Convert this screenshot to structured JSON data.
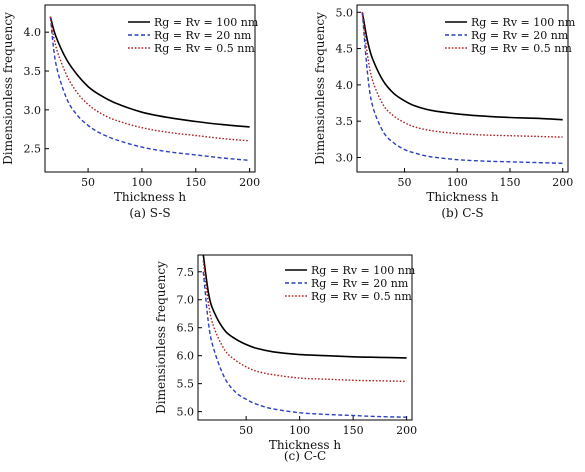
{
  "chart_data": [
    {
      "type": "line",
      "caption": "(a) S-S",
      "xlabel": "Thickness h",
      "ylabel": "Dimensionless frequency",
      "xlim": [
        10,
        205
      ],
      "ylim": [
        2.2,
        4.35
      ],
      "xticks": [
        50,
        100,
        150,
        200
      ],
      "yticks": [
        2.5,
        3.0,
        3.5,
        4.0
      ],
      "grid": false,
      "legend_position": "top-right",
      "series": [
        {
          "name": "Rg = Rv = 100 nm",
          "color": "#000000",
          "style": "solid",
          "x": [
            15,
            20,
            30,
            40,
            50,
            60,
            75,
            100,
            125,
            150,
            175,
            200
          ],
          "y": [
            4.2,
            3.95,
            3.65,
            3.45,
            3.3,
            3.2,
            3.09,
            2.97,
            2.9,
            2.85,
            2.81,
            2.78
          ]
        },
        {
          "name": "Rg = Rv = 20 nm",
          "color": "#2a3fbf",
          "style": "dashed",
          "x": [
            15,
            20,
            30,
            40,
            50,
            60,
            75,
            100,
            125,
            150,
            175,
            200
          ],
          "y": [
            4.2,
            3.6,
            3.15,
            2.93,
            2.8,
            2.71,
            2.62,
            2.52,
            2.46,
            2.42,
            2.38,
            2.35
          ]
        },
        {
          "name": "Rg = Rv = 0.5 nm",
          "color": "#b02020",
          "style": "dotted",
          "x": [
            15,
            20,
            30,
            40,
            50,
            60,
            75,
            100,
            125,
            150,
            175,
            200
          ],
          "y": [
            4.2,
            3.82,
            3.45,
            3.22,
            3.07,
            2.97,
            2.87,
            2.77,
            2.71,
            2.67,
            2.63,
            2.6
          ]
        }
      ]
    },
    {
      "type": "line",
      "caption": "(b) C-S",
      "xlabel": "Thickness h",
      "ylabel": "Dimensionless frequency",
      "xlim": [
        5,
        205
      ],
      "ylim": [
        2.8,
        5.1
      ],
      "xticks": [
        50,
        100,
        150,
        200
      ],
      "yticks": [
        3.0,
        3.5,
        4.0,
        4.5,
        5.0
      ],
      "grid": false,
      "legend_position": "top-right",
      "series": [
        {
          "name": "Rg = Rv = 100 nm",
          "color": "#000000",
          "style": "solid",
          "x": [
            10,
            15,
            20,
            30,
            40,
            50,
            60,
            75,
            100,
            125,
            150,
            175,
            200
          ],
          "y": [
            5.0,
            4.6,
            4.35,
            4.05,
            3.88,
            3.78,
            3.71,
            3.65,
            3.6,
            3.57,
            3.55,
            3.54,
            3.52
          ]
        },
        {
          "name": "Rg = Rv = 20 nm",
          "color": "#2a3fbf",
          "style": "dashed",
          "x": [
            10,
            15,
            20,
            30,
            40,
            50,
            60,
            75,
            100,
            125,
            150,
            175,
            200
          ],
          "y": [
            5.0,
            4.15,
            3.7,
            3.35,
            3.2,
            3.11,
            3.06,
            3.01,
            2.97,
            2.95,
            2.94,
            2.93,
            2.92
          ]
        },
        {
          "name": "Rg = Rv = 0.5 nm",
          "color": "#b02020",
          "style": "dotted",
          "x": [
            10,
            15,
            20,
            30,
            40,
            50,
            60,
            75,
            100,
            125,
            150,
            175,
            200
          ],
          "y": [
            5.0,
            4.4,
            4.05,
            3.72,
            3.57,
            3.48,
            3.42,
            3.37,
            3.33,
            3.31,
            3.3,
            3.29,
            3.28
          ]
        }
      ]
    },
    {
      "type": "line",
      "caption": "(c) C-C",
      "xlabel": "Thickness h",
      "ylabel": "Dimensionless frequency",
      "xlim": [
        5,
        205
      ],
      "ylim": [
        4.85,
        7.8
      ],
      "xticks": [
        50,
        100,
        150,
        200
      ],
      "yticks": [
        5.0,
        5.5,
        6.0,
        6.5,
        7.0,
        7.5
      ],
      "grid": false,
      "legend_position": "top-right",
      "series": [
        {
          "name": "Rg = Rv = 100 nm",
          "color": "#000000",
          "style": "solid",
          "x": [
            10,
            15,
            20,
            30,
            40,
            50,
            60,
            75,
            100,
            125,
            150,
            175,
            200
          ],
          "y": [
            7.8,
            7.1,
            6.78,
            6.45,
            6.3,
            6.2,
            6.13,
            6.07,
            6.02,
            6.0,
            5.98,
            5.97,
            5.96
          ]
        },
        {
          "name": "Rg = Rv = 20 nm",
          "color": "#2a3fbf",
          "style": "dashed",
          "x": [
            10,
            15,
            20,
            30,
            40,
            50,
            60,
            75,
            100,
            125,
            150,
            175,
            200
          ],
          "y": [
            7.5,
            6.55,
            6.1,
            5.6,
            5.35,
            5.22,
            5.13,
            5.05,
            4.98,
            4.95,
            4.93,
            4.91,
            4.9
          ]
        },
        {
          "name": "Rg = Rv = 0.5 nm",
          "color": "#b02020",
          "style": "dotted",
          "x": [
            10,
            15,
            20,
            30,
            40,
            50,
            60,
            75,
            100,
            125,
            150,
            175,
            200
          ],
          "y": [
            7.7,
            6.9,
            6.5,
            6.1,
            5.92,
            5.8,
            5.72,
            5.66,
            5.6,
            5.58,
            5.56,
            5.55,
            5.54
          ]
        }
      ]
    }
  ]
}
